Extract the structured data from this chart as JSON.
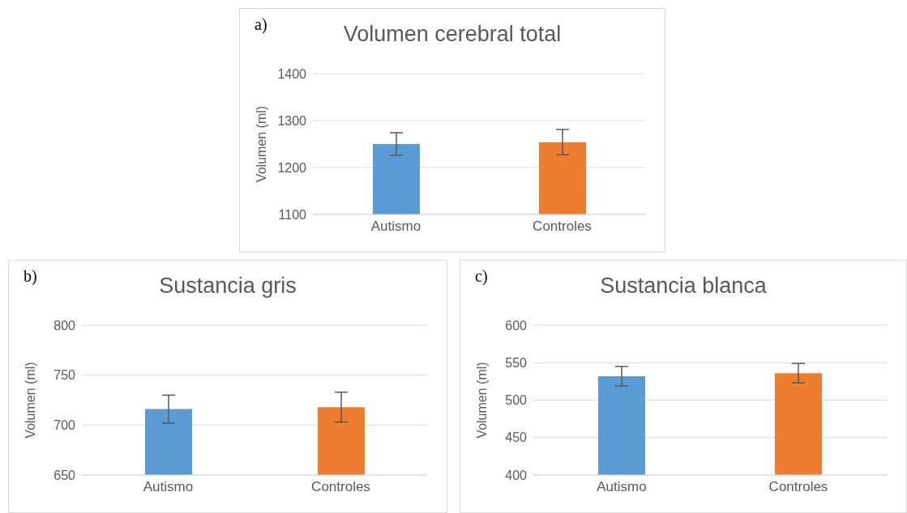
{
  "chart_data": [
    {
      "type": "bar",
      "title": "Volumen cerebral total",
      "ylabel": "Volumen (ml)",
      "annotations": [
        "a)"
      ],
      "categories": [
        "Autismo",
        "Controles"
      ],
      "values": [
        1250,
        1254
      ],
      "errors": [
        24,
        27
      ],
      "colors": [
        "#5b9bd5",
        "#ed7d31"
      ],
      "ylim": [
        1100,
        1400
      ],
      "yticks": [
        1100,
        1200,
        1300,
        1400
      ],
      "grid": "y"
    },
    {
      "type": "bar",
      "title": "Sustancia gris",
      "ylabel": "Volumen (ml)",
      "annotations": [
        "b)"
      ],
      "categories": [
        "Autismo",
        "Controles"
      ],
      "values": [
        716,
        718
      ],
      "errors": [
        14,
        15
      ],
      "colors": [
        "#5b9bd5",
        "#ed7d31"
      ],
      "ylim": [
        650,
        800
      ],
      "yticks": [
        650,
        700,
        750,
        800
      ],
      "grid": "y"
    },
    {
      "type": "bar",
      "title": "Sustancia blanca",
      "ylabel": "Volumen (ml)",
      "annotations": [
        "c)"
      ],
      "categories": [
        "Autismo",
        "Controles"
      ],
      "values": [
        532,
        536
      ],
      "errors": [
        13,
        13
      ],
      "colors": [
        "#5b9bd5",
        "#ed7d31"
      ],
      "ylim": [
        400,
        600
      ],
      "yticks": [
        400,
        450,
        500,
        550,
        600
      ],
      "grid": "y"
    }
  ]
}
